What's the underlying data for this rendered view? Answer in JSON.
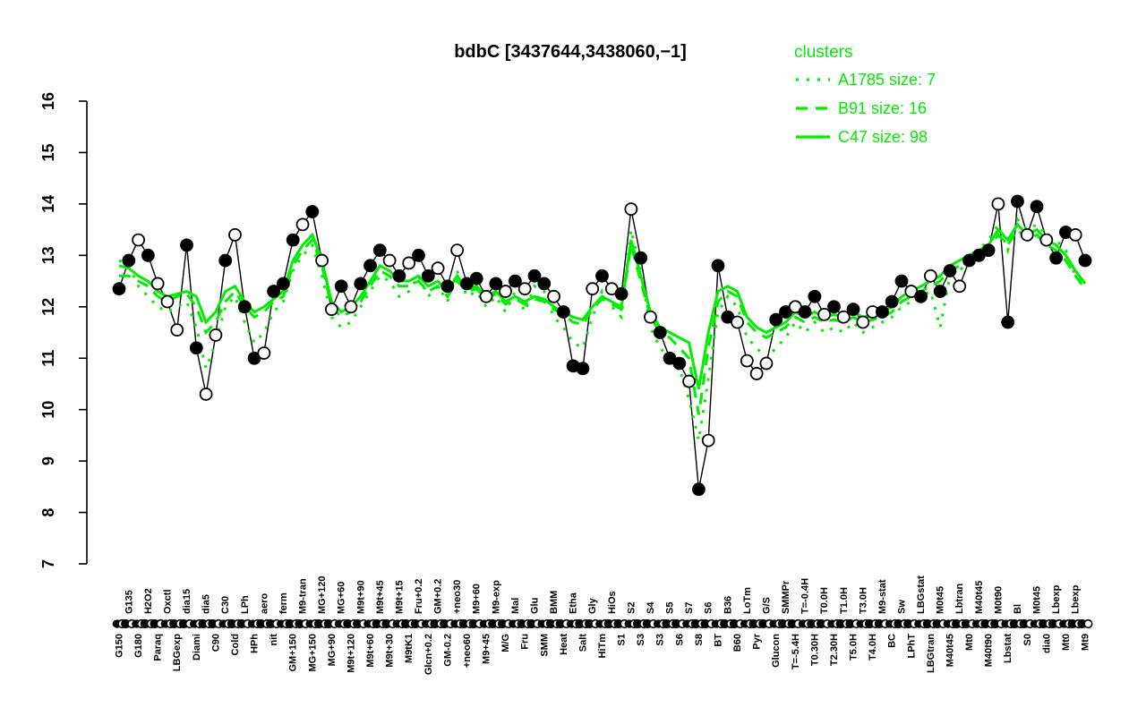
{
  "title": "bdbC [3437644,3438060,−1]",
  "legend": {
    "heading": "clusters",
    "color": "#00EE00",
    "entries": [
      {
        "label": "A1785 size: 7",
        "style": "dotted"
      },
      {
        "label": "B91 size: 16",
        "style": "dashed"
      },
      {
        "label": "C47 size: 98",
        "style": "solid"
      }
    ]
  },
  "chart_data": {
    "type": "line",
    "title": "bdbC [3437644,3438060,−1]",
    "xlabel": "",
    "ylabel": "",
    "ylim": [
      7,
      16
    ],
    "yticks": [
      7,
      8,
      9,
      10,
      11,
      12,
      13,
      14,
      15,
      16
    ],
    "grid": false,
    "legend_position": "top-right",
    "colors": {
      "gene": "#000000",
      "clusters": "#00EE00"
    },
    "categories": [
      "G150",
      "G135",
      "G180",
      "H2O2",
      "Paraq",
      "Oxctl",
      "LBGexp",
      "dia15",
      "Diami",
      "dia5",
      "C90",
      "C30",
      "Cold",
      "LPh",
      "HPh",
      "aero",
      "nit",
      "ferm",
      "GM+150",
      "M9-tran",
      "MG+150",
      "MG+120",
      "MG+90",
      "MG+60",
      "M9t+120",
      "M9t+90",
      "M9t+60",
      "M9t+45",
      "M9t+30",
      "M9t+15",
      "M9tK1",
      "Fru+0.2",
      "Glcn+0.2",
      "GM+0.2",
      "GM-0.2",
      "+neo30",
      "+neo60",
      "M9+60",
      "M9+45",
      "M9-exp",
      "M/G",
      "Mal",
      "Fru",
      "Glu",
      "SMM",
      "BMM",
      "Heat",
      "Etha",
      "Salt",
      "Gly",
      "HiTm",
      "HiOs",
      "S1",
      "S2",
      "S3",
      "S4",
      "S3",
      "S5",
      "S6",
      "S7",
      "S8",
      "S6",
      "BT",
      "B36",
      "B60",
      "LoTm",
      "Pyr",
      "G/S",
      "Glucon",
      "SMMPr",
      "T=-5.4H",
      "T=-0.4H",
      "T0.30H",
      "T0.0H",
      "T2.30H",
      "T1.0H",
      "T5.0H",
      "T3.0H",
      "T4.0H",
      "M9-stat",
      "BC",
      "Sw",
      "LPhT",
      "LBGstat",
      "LBGtran",
      "M0t45",
      "M40t45",
      "Lbtran",
      "Mt0",
      "M40t45",
      "M40t90",
      "M0t90",
      "Lbstat",
      "Bl",
      "S0",
      "M0t45",
      "dia0",
      "Lbexp",
      "Mt0",
      "Lbexp",
      "Mt9"
    ],
    "gene": {
      "name": "bdbC expression",
      "values": [
        12.35,
        12.9,
        13.3,
        13.0,
        12.45,
        12.1,
        11.55,
        13.2,
        11.2,
        10.3,
        11.45,
        12.9,
        13.4,
        12.0,
        11.0,
        11.1,
        12.3,
        12.45,
        13.3,
        13.6,
        13.85,
        12.9,
        11.95,
        12.4,
        12.0,
        12.45,
        12.8,
        13.1,
        12.9,
        12.6,
        12.85,
        13.0,
        12.6,
        12.75,
        12.4,
        13.1,
        12.45,
        12.55,
        12.2,
        12.45,
        12.3,
        12.5,
        12.35,
        12.6,
        12.45,
        12.2,
        11.9,
        10.85,
        10.8,
        12.35,
        12.6,
        12.35,
        12.25,
        13.9,
        12.95,
        11.8,
        11.5,
        11.0,
        10.9,
        10.55,
        8.45,
        9.4,
        12.8,
        11.8,
        11.7,
        10.95,
        10.7,
        10.9,
        11.75,
        11.9,
        12.0,
        11.9,
        12.2,
        11.85,
        12.0,
        11.8,
        11.95,
        11.7,
        11.9,
        11.9,
        12.1,
        12.5,
        12.3,
        12.2,
        12.6,
        12.3,
        12.7,
        12.4,
        12.9,
        13.0,
        13.1,
        14.0,
        11.7,
        14.05,
        13.4,
        13.95,
        13.3,
        12.95,
        13.45,
        13.4,
        12.9
      ],
      "point_filled": [
        1,
        1,
        0,
        1,
        0,
        0,
        0,
        1,
        1,
        0,
        0,
        1,
        0,
        1,
        1,
        0,
        1,
        1,
        1,
        0,
        1,
        0,
        0,
        1,
        0,
        1,
        1,
        1,
        0,
        1,
        0,
        1,
        1,
        0,
        1,
        0,
        1,
        1,
        0,
        1,
        0,
        1,
        0,
        1,
        1,
        0,
        1,
        1,
        1,
        0,
        1,
        0,
        1,
        0,
        1,
        0,
        1,
        1,
        1,
        0,
        1,
        0,
        1,
        1,
        0,
        0,
        0,
        0,
        1,
        1,
        0,
        1,
        1,
        0,
        1,
        0,
        1,
        0,
        0,
        1,
        1,
        1,
        0,
        1,
        0,
        1,
        1,
        0,
        1,
        1,
        1,
        0,
        1,
        1,
        0,
        1,
        0,
        1,
        1,
        0,
        1
      ]
    },
    "series": [
      {
        "name": "A1785 size: 7",
        "style": "dotted",
        "values": [
          12.9,
          12.8,
          12.4,
          12.2,
          12.0,
          11.9,
          12.0,
          12.1,
          11.6,
          10.8,
          11.3,
          12.0,
          12.2,
          11.7,
          11.3,
          11.5,
          11.9,
          12.1,
          12.7,
          13.0,
          13.2,
          12.6,
          11.8,
          11.6,
          11.7,
          12.0,
          12.3,
          12.6,
          12.5,
          12.2,
          12.3,
          12.6,
          12.2,
          12.4,
          12.1,
          12.7,
          12.2,
          12.3,
          12.0,
          12.2,
          11.9,
          12.3,
          11.9,
          12.4,
          12.3,
          11.8,
          11.6,
          11.3,
          11.2,
          11.8,
          12.3,
          12.0,
          11.8,
          13.5,
          12.7,
          11.6,
          11.2,
          11.0,
          10.8,
          10.2,
          9.4,
          10.6,
          11.9,
          12.2,
          12.0,
          11.4,
          11.2,
          11.0,
          11.2,
          11.4,
          11.7,
          11.5,
          11.7,
          11.5,
          11.6,
          11.5,
          11.7,
          11.5,
          11.6,
          11.7,
          11.8,
          12.0,
          12.1,
          12.2,
          12.3,
          11.6,
          12.6,
          12.7,
          12.9,
          13.1,
          13.3,
          13.6,
          13.1,
          13.7,
          13.5,
          13.6,
          13.4,
          13.3,
          13.1,
          12.6,
          12.4
        ]
      },
      {
        "name": "B91 size: 16",
        "style": "dashed",
        "values": [
          12.6,
          12.6,
          12.5,
          12.4,
          12.2,
          12.1,
          12.2,
          12.25,
          12.0,
          11.5,
          11.7,
          12.1,
          12.3,
          12.0,
          11.8,
          11.9,
          12.1,
          12.2,
          12.8,
          13.1,
          13.3,
          12.8,
          12.0,
          11.8,
          11.9,
          12.1,
          12.4,
          12.7,
          12.6,
          12.4,
          12.4,
          12.5,
          12.3,
          12.4,
          12.2,
          12.5,
          12.3,
          12.35,
          12.15,
          12.25,
          12.05,
          12.15,
          12.05,
          12.15,
          12.1,
          11.95,
          11.85,
          11.7,
          11.65,
          11.95,
          12.15,
          12.05,
          11.95,
          13.2,
          12.5,
          11.8,
          11.5,
          11.4,
          11.2,
          11.0,
          9.9,
          11.2,
          12.1,
          12.3,
          12.2,
          11.7,
          11.5,
          11.4,
          11.5,
          11.6,
          11.8,
          11.7,
          11.8,
          11.7,
          11.75,
          11.7,
          11.8,
          11.7,
          11.75,
          11.8,
          11.9,
          12.1,
          12.2,
          12.3,
          12.4,
          12.5,
          12.7,
          12.8,
          12.9,
          13.0,
          13.1,
          13.4,
          13.2,
          13.5,
          13.3,
          13.4,
          13.2,
          13.1,
          12.9,
          12.6,
          12.35
        ]
      },
      {
        "name": "C47 size: 98",
        "style": "solid",
        "values": [
          12.8,
          12.75,
          12.6,
          12.5,
          12.3,
          12.2,
          12.25,
          12.3,
          12.2,
          11.7,
          11.9,
          12.3,
          12.4,
          12.1,
          11.9,
          12.0,
          12.15,
          12.3,
          12.9,
          13.2,
          13.4,
          12.9,
          12.1,
          11.9,
          12.0,
          12.2,
          12.5,
          12.8,
          12.7,
          12.5,
          12.5,
          12.6,
          12.4,
          12.5,
          12.3,
          12.6,
          12.35,
          12.4,
          12.2,
          12.3,
          12.1,
          12.2,
          12.1,
          12.2,
          12.15,
          12.0,
          11.9,
          11.8,
          11.75,
          12.0,
          12.2,
          12.1,
          12.0,
          13.3,
          12.6,
          11.9,
          11.6,
          11.5,
          11.4,
          11.3,
          10.4,
          11.5,
          12.3,
          12.4,
          12.3,
          11.8,
          11.6,
          11.5,
          11.6,
          11.7,
          11.9,
          11.8,
          11.9,
          11.8,
          11.85,
          11.8,
          11.9,
          11.8,
          11.85,
          11.9,
          12.0,
          12.2,
          12.3,
          12.4,
          12.5,
          12.6,
          12.8,
          12.9,
          13.0,
          13.1,
          13.2,
          13.5,
          13.3,
          13.6,
          13.4,
          13.5,
          13.3,
          13.2,
          13.0,
          12.7,
          12.45
        ]
      }
    ]
  }
}
